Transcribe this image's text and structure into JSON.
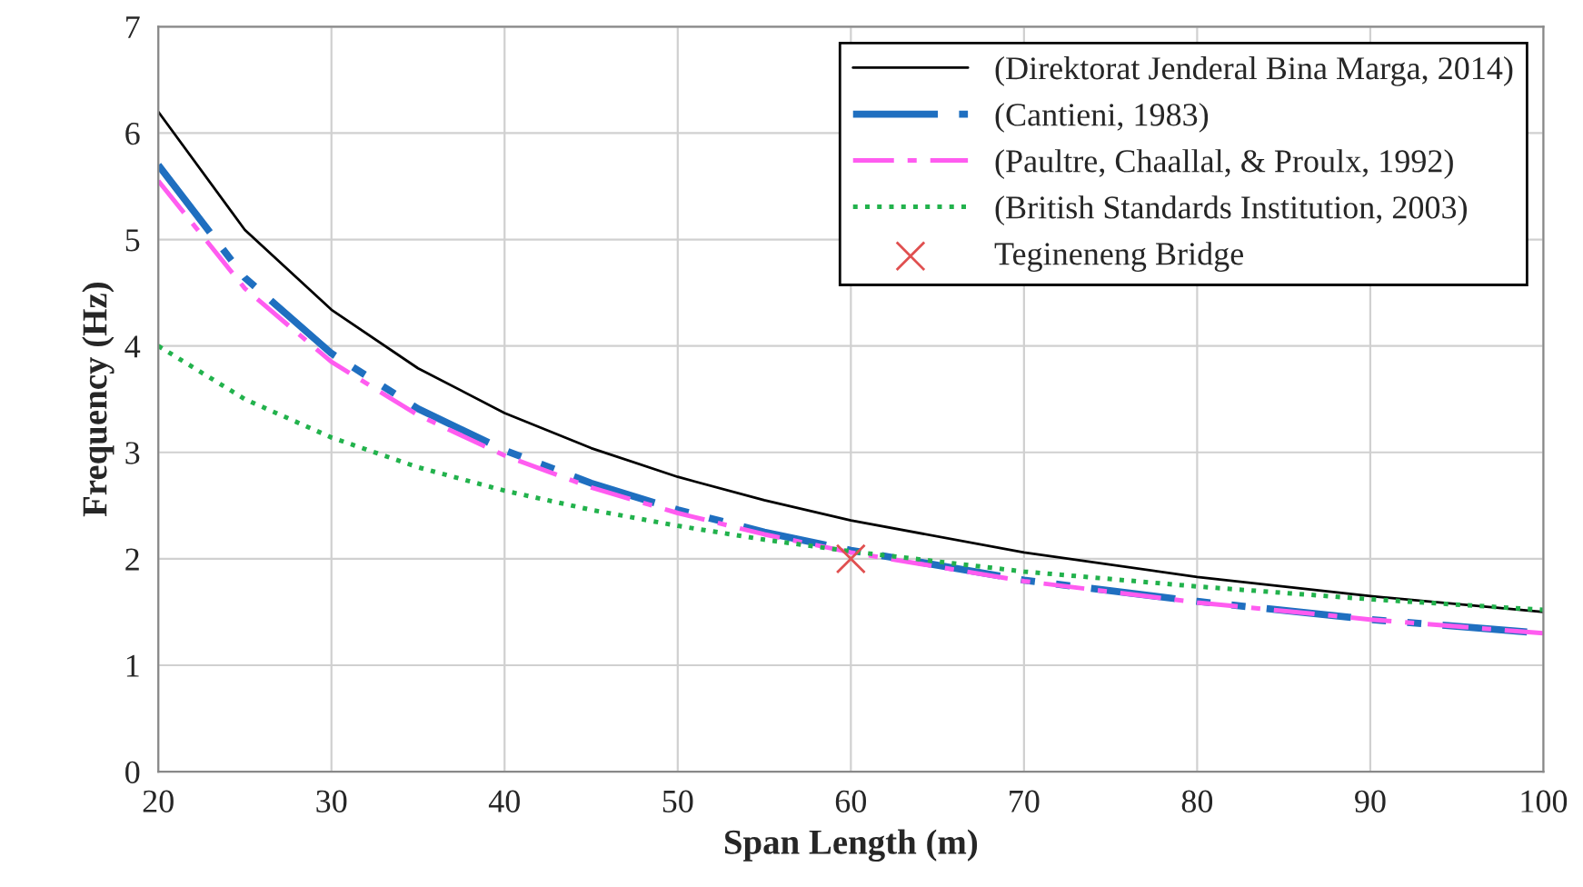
{
  "chart_data": {
    "type": "line",
    "xlabel": "Span Length (m)",
    "ylabel": "Frequency (Hz)",
    "xlim": [
      20,
      100
    ],
    "xticks": [
      20,
      30,
      40,
      50,
      60,
      70,
      80,
      90,
      100
    ],
    "ylim": [
      0,
      7
    ],
    "yticks": [
      0,
      1,
      2,
      3,
      4,
      5,
      6,
      7
    ],
    "grid": true,
    "legend": "top right",
    "x": [
      20,
      25,
      30,
      35,
      40,
      45,
      50,
      55,
      60,
      70,
      80,
      90,
      100
    ],
    "series": [
      {
        "name": "(Direktorat Jenderal Bina Marga, 2014)",
        "color": "#000000",
        "line_style": "solid",
        "values": [
          6.2,
          5.09,
          4.34,
          3.79,
          3.37,
          3.04,
          2.77,
          2.55,
          2.36,
          2.06,
          1.83,
          1.65,
          1.5
        ]
      },
      {
        "name": "(Cantieni, 1983)",
        "color": "#1f6fc0",
        "line_style": "dashed",
        "values": [
          5.7,
          4.64,
          3.93,
          3.41,
          3.02,
          2.71,
          2.46,
          2.25,
          2.08,
          1.8,
          1.6,
          1.43,
          1.3
        ]
      },
      {
        "name": "(Paultre, Chaallal, & Proulx, 1992)",
        "color": "#ff5cf0",
        "line_style": "dashed",
        "values": [
          5.55,
          4.54,
          3.85,
          3.35,
          2.97,
          2.67,
          2.43,
          2.23,
          2.06,
          1.79,
          1.59,
          1.43,
          1.3
        ]
      },
      {
        "name": "(British Standards Institution, 2003)",
        "color": "#22b24c",
        "line_style": "dotted",
        "values": [
          4.0,
          3.5,
          3.14,
          2.86,
          2.64,
          2.46,
          2.31,
          2.18,
          2.07,
          1.88,
          1.74,
          1.62,
          1.52
        ]
      },
      {
        "name": "Tegineneng Bridge",
        "type": "scatter",
        "marker": "cross",
        "color": "#e05050",
        "x": [
          60
        ],
        "values": [
          2.0
        ]
      }
    ]
  }
}
